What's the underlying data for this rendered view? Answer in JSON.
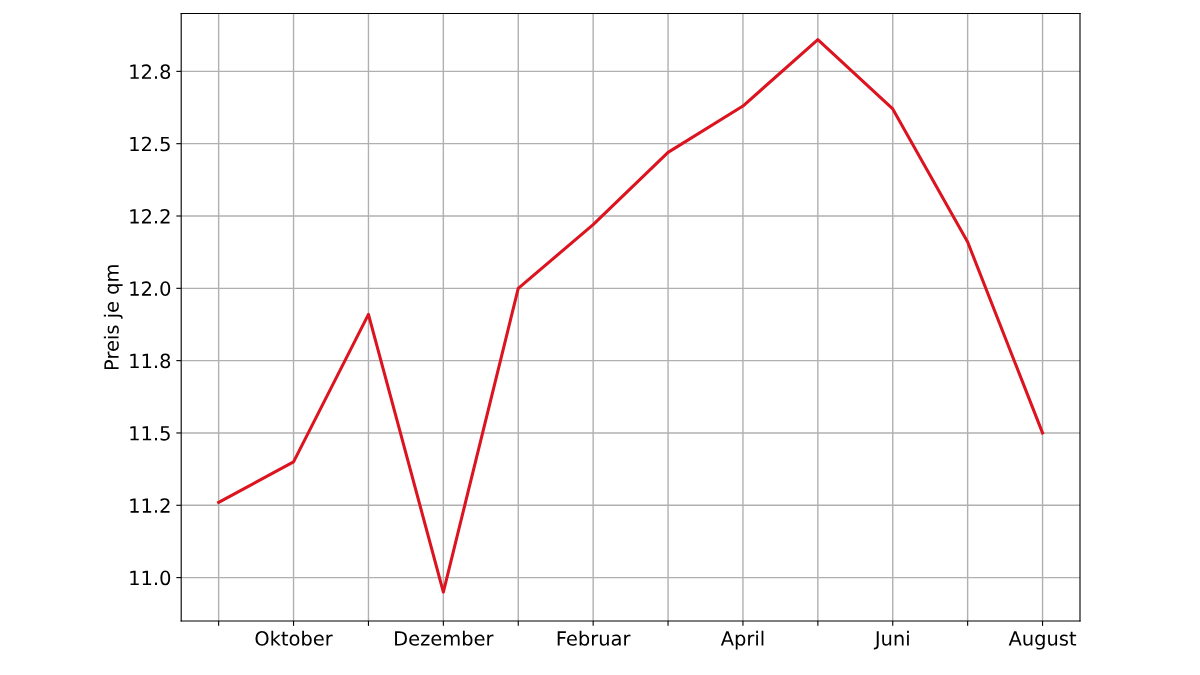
{
  "chart_data": {
    "type": "line",
    "ylabel": "Preis je qm",
    "categories": [
      null,
      "Oktober",
      null,
      "Dezember",
      null,
      "Februar",
      null,
      "April",
      null,
      "Juni",
      null,
      "August"
    ],
    "series": [
      {
        "color": "#dc1420",
        "values": [
          11.26,
          11.4,
          11.91,
          10.95,
          12.0,
          12.22,
          12.47,
          12.63,
          12.86,
          12.62,
          12.16,
          11.5
        ]
      }
    ],
    "ylim": [
      10.85,
      12.95
    ],
    "yticks": [
      {
        "value": 11,
        "label": "11.0"
      },
      {
        "value": 11.25,
        "label": "11.2"
      },
      11.5,
      {
        "value": 11.75,
        "label": "11.8"
      },
      {
        "value": 12,
        "label": "12.0"
      },
      {
        "value": 12.25,
        "label": "12.2"
      },
      12.5,
      {
        "value": 12.75,
        "label": "12.8"
      }
    ],
    "grid": true
  }
}
